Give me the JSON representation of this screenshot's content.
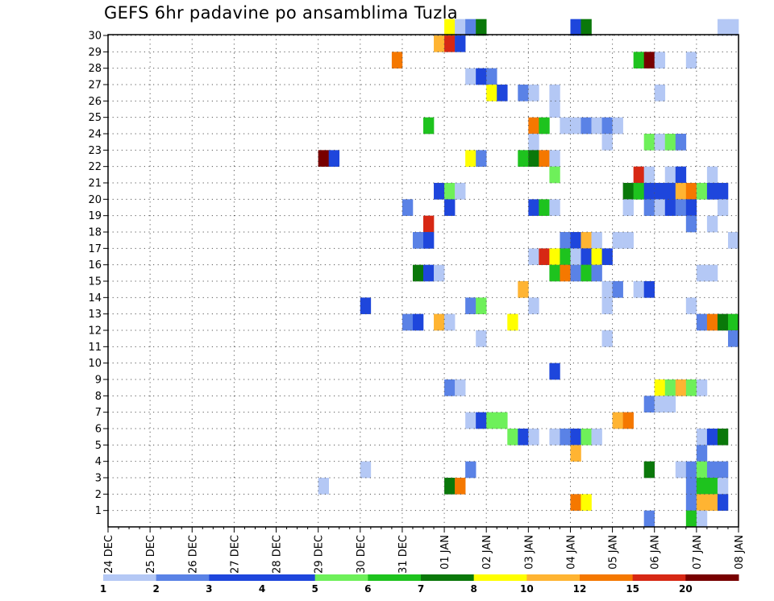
{
  "chart_data": {
    "type": "heatmap",
    "title": "GEFS 6hr padavine po ansamblima Tuzla",
    "xlabel": "",
    "ylabel": "",
    "x_tick_labels": [
      "24 DEC",
      "25 DEC",
      "26 DEC",
      "27 DEC",
      "28 DEC",
      "29 DEC",
      "30 DEC",
      "31 DEC",
      "01 JAN",
      "02 JAN",
      "03 JAN",
      "04 JAN",
      "05 JAN",
      "06 JAN",
      "07 JAN",
      "08 JAN"
    ],
    "x_steps_per_day": 4,
    "y_range": [
      0,
      30
    ],
    "y_ticks": [
      1,
      2,
      3,
      4,
      5,
      6,
      7,
      8,
      9,
      10,
      11,
      12,
      13,
      14,
      15,
      16,
      17,
      18,
      19,
      20,
      21,
      22,
      23,
      24,
      25,
      26,
      27,
      28,
      29,
      30
    ],
    "grid": true,
    "colorbar": {
      "labels": [
        "1",
        "2",
        "3",
        "4",
        "5",
        "6",
        "7",
        "8",
        "10",
        "12",
        "15",
        "20"
      ],
      "colors": [
        "#b4c8f5",
        "#5a82e6",
        "#1e46dc",
        "#1e46dc",
        "#6ef05a",
        "#1ec31e",
        "#0a780a",
        "#ffff00",
        "#ffb432",
        "#f57800",
        "#d72814",
        "#780000"
      ]
    },
    "legend_position": "bottom",
    "cells": [
      {
        "member": 30,
        "step": 32,
        "level": 8
      },
      {
        "member": 30,
        "step": 33,
        "level": 1
      },
      {
        "member": 30,
        "step": 34,
        "level": 2
      },
      {
        "member": 30,
        "step": 35,
        "level": 7
      },
      {
        "member": 30,
        "step": 44,
        "level": 3
      },
      {
        "member": 30,
        "step": 45,
        "level": 7
      },
      {
        "member": 30,
        "step": 58,
        "level": 1
      },
      {
        "member": 30,
        "step": 59,
        "level": 1
      },
      {
        "member": 29,
        "step": 31,
        "level": 10
      },
      {
        "member": 29,
        "step": 32,
        "level": 15
      },
      {
        "member": 29,
        "step": 33,
        "level": 3
      },
      {
        "member": 28,
        "step": 27,
        "level": 12
      },
      {
        "member": 28,
        "step": 50,
        "level": 6
      },
      {
        "member": 28,
        "step": 51,
        "level": 20
      },
      {
        "member": 28,
        "step": 52,
        "level": 1
      },
      {
        "member": 28,
        "step": 55,
        "level": 1
      },
      {
        "member": 27,
        "step": 34,
        "level": 1
      },
      {
        "member": 27,
        "step": 35,
        "level": 3
      },
      {
        "member": 27,
        "step": 36,
        "level": 2
      },
      {
        "member": 26,
        "step": 36,
        "level": 8
      },
      {
        "member": 26,
        "step": 37,
        "level": 3
      },
      {
        "member": 26,
        "step": 39,
        "level": 2
      },
      {
        "member": 26,
        "step": 40,
        "level": 1
      },
      {
        "member": 26,
        "step": 42,
        "level": 1
      },
      {
        "member": 26,
        "step": 52,
        "level": 1
      },
      {
        "member": 25,
        "step": 42,
        "level": 1
      },
      {
        "member": 24,
        "step": 30,
        "level": 6
      },
      {
        "member": 24,
        "step": 40,
        "level": 12
      },
      {
        "member": 24,
        "step": 41,
        "level": 6
      },
      {
        "member": 24,
        "step": 43,
        "level": 1
      },
      {
        "member": 24,
        "step": 44,
        "level": 1
      },
      {
        "member": 24,
        "step": 45,
        "level": 2
      },
      {
        "member": 24,
        "step": 46,
        "level": 1
      },
      {
        "member": 24,
        "step": 47,
        "level": 2
      },
      {
        "member": 24,
        "step": 48,
        "level": 1
      },
      {
        "member": 23,
        "step": 40,
        "level": 1
      },
      {
        "member": 23,
        "step": 47,
        "level": 1
      },
      {
        "member": 23,
        "step": 51,
        "level": 5
      },
      {
        "member": 23,
        "step": 52,
        "level": 1
      },
      {
        "member": 23,
        "step": 53,
        "level": 5
      },
      {
        "member": 23,
        "step": 54,
        "level": 2
      },
      {
        "member": 22,
        "step": 20,
        "level": 20
      },
      {
        "member": 22,
        "step": 21,
        "level": 3
      },
      {
        "member": 22,
        "step": 34,
        "level": 8
      },
      {
        "member": 22,
        "step": 35,
        "level": 2
      },
      {
        "member": 22,
        "step": 39,
        "level": 6
      },
      {
        "member": 22,
        "step": 40,
        "level": 7
      },
      {
        "member": 22,
        "step": 41,
        "level": 12
      },
      {
        "member": 22,
        "step": 42,
        "level": 1
      },
      {
        "member": 21,
        "step": 42,
        "level": 5
      },
      {
        "member": 21,
        "step": 50,
        "level": 15
      },
      {
        "member": 21,
        "step": 51,
        "level": 1
      },
      {
        "member": 21,
        "step": 53,
        "level": 1
      },
      {
        "member": 21,
        "step": 54,
        "level": 3
      },
      {
        "member": 21,
        "step": 57,
        "level": 1
      },
      {
        "member": 20,
        "step": 31,
        "level": 3
      },
      {
        "member": 20,
        "step": 32,
        "level": 5
      },
      {
        "member": 20,
        "step": 33,
        "level": 1
      },
      {
        "member": 20,
        "step": 49,
        "level": 7
      },
      {
        "member": 20,
        "step": 50,
        "level": 6
      },
      {
        "member": 20,
        "step": 51,
        "level": 3
      },
      {
        "member": 20,
        "step": 52,
        "level": 3
      },
      {
        "member": 20,
        "step": 53,
        "level": 3
      },
      {
        "member": 20,
        "step": 54,
        "level": 10
      },
      {
        "member": 20,
        "step": 55,
        "level": 12
      },
      {
        "member": 20,
        "step": 56,
        "level": 5
      },
      {
        "member": 20,
        "step": 57,
        "level": 3
      },
      {
        "member": 20,
        "step": 58,
        "level": 3
      },
      {
        "member": 19,
        "step": 28,
        "level": 2
      },
      {
        "member": 19,
        "step": 32,
        "level": 3
      },
      {
        "member": 19,
        "step": 40,
        "level": 3
      },
      {
        "member": 19,
        "step": 41,
        "level": 6
      },
      {
        "member": 19,
        "step": 42,
        "level": 1
      },
      {
        "member": 19,
        "step": 49,
        "level": 1
      },
      {
        "member": 19,
        "step": 51,
        "level": 2
      },
      {
        "member": 19,
        "step": 52,
        "level": 1
      },
      {
        "member": 19,
        "step": 53,
        "level": 3
      },
      {
        "member": 19,
        "step": 54,
        "level": 2
      },
      {
        "member": 19,
        "step": 55,
        "level": 3
      },
      {
        "member": 19,
        "step": 58,
        "level": 1
      },
      {
        "member": 18,
        "step": 30,
        "level": 15
      },
      {
        "member": 18,
        "step": 55,
        "level": 2
      },
      {
        "member": 18,
        "step": 57,
        "level": 1
      },
      {
        "member": 17,
        "step": 29,
        "level": 2
      },
      {
        "member": 17,
        "step": 30,
        "level": 3
      },
      {
        "member": 17,
        "step": 43,
        "level": 2
      },
      {
        "member": 17,
        "step": 44,
        "level": 3
      },
      {
        "member": 17,
        "step": 45,
        "level": 10
      },
      {
        "member": 17,
        "step": 46,
        "level": 1
      },
      {
        "member": 17,
        "step": 48,
        "level": 1
      },
      {
        "member": 17,
        "step": 49,
        "level": 1
      },
      {
        "member": 17,
        "step": 59,
        "level": 1
      },
      {
        "member": 16,
        "step": 40,
        "level": 1
      },
      {
        "member": 16,
        "step": 41,
        "level": 15
      },
      {
        "member": 16,
        "step": 42,
        "level": 8
      },
      {
        "member": 16,
        "step": 43,
        "level": 6
      },
      {
        "member": 16,
        "step": 44,
        "level": 1
      },
      {
        "member": 16,
        "step": 45,
        "level": 3
      },
      {
        "member": 16,
        "step": 46,
        "level": 8
      },
      {
        "member": 16,
        "step": 47,
        "level": 3
      },
      {
        "member": 15,
        "step": 29,
        "level": 7
      },
      {
        "member": 15,
        "step": 30,
        "level": 3
      },
      {
        "member": 15,
        "step": 31,
        "level": 1
      },
      {
        "member": 15,
        "step": 42,
        "level": 6
      },
      {
        "member": 15,
        "step": 43,
        "level": 12
      },
      {
        "member": 15,
        "step": 44,
        "level": 2
      },
      {
        "member": 15,
        "step": 45,
        "level": 6
      },
      {
        "member": 15,
        "step": 46,
        "level": 2
      },
      {
        "member": 15,
        "step": 56,
        "level": 1
      },
      {
        "member": 15,
        "step": 57,
        "level": 1
      },
      {
        "member": 14,
        "step": 39,
        "level": 10
      },
      {
        "member": 14,
        "step": 47,
        "level": 1
      },
      {
        "member": 14,
        "step": 48,
        "level": 2
      },
      {
        "member": 14,
        "step": 50,
        "level": 1
      },
      {
        "member": 14,
        "step": 51,
        "level": 3
      },
      {
        "member": 13,
        "step": 24,
        "level": 3
      },
      {
        "member": 13,
        "step": 34,
        "level": 2
      },
      {
        "member": 13,
        "step": 35,
        "level": 5
      },
      {
        "member": 13,
        "step": 40,
        "level": 1
      },
      {
        "member": 13,
        "step": 47,
        "level": 1
      },
      {
        "member": 13,
        "step": 55,
        "level": 1
      },
      {
        "member": 12,
        "step": 28,
        "level": 2
      },
      {
        "member": 12,
        "step": 29,
        "level": 3
      },
      {
        "member": 12,
        "step": 31,
        "level": 10
      },
      {
        "member": 12,
        "step": 32,
        "level": 1
      },
      {
        "member": 12,
        "step": 38,
        "level": 8
      },
      {
        "member": 12,
        "step": 56,
        "level": 2
      },
      {
        "member": 12,
        "step": 57,
        "level": 12
      },
      {
        "member": 12,
        "step": 58,
        "level": 7
      },
      {
        "member": 12,
        "step": 59,
        "level": 6
      },
      {
        "member": 11,
        "step": 35,
        "level": 1
      },
      {
        "member": 11,
        "step": 47,
        "level": 1
      },
      {
        "member": 11,
        "step": 59,
        "level": 2
      },
      {
        "member": 9,
        "step": 42,
        "level": 3
      },
      {
        "member": 8,
        "step": 32,
        "level": 2
      },
      {
        "member": 8,
        "step": 33,
        "level": 1
      },
      {
        "member": 8,
        "step": 52,
        "level": 8
      },
      {
        "member": 8,
        "step": 53,
        "level": 5
      },
      {
        "member": 8,
        "step": 54,
        "level": 10
      },
      {
        "member": 8,
        "step": 55,
        "level": 5
      },
      {
        "member": 8,
        "step": 56,
        "level": 1
      },
      {
        "member": 7,
        "step": 51,
        "level": 2
      },
      {
        "member": 7,
        "step": 52,
        "level": 1
      },
      {
        "member": 7,
        "step": 53,
        "level": 1
      },
      {
        "member": 6,
        "step": 34,
        "level": 1
      },
      {
        "member": 6,
        "step": 35,
        "level": 3
      },
      {
        "member": 6,
        "step": 36,
        "level": 5
      },
      {
        "member": 6,
        "step": 37,
        "level": 5
      },
      {
        "member": 6,
        "step": 48,
        "level": 10
      },
      {
        "member": 6,
        "step": 49,
        "level": 12
      },
      {
        "member": 5,
        "step": 38,
        "level": 5
      },
      {
        "member": 5,
        "step": 39,
        "level": 3
      },
      {
        "member": 5,
        "step": 40,
        "level": 1
      },
      {
        "member": 5,
        "step": 42,
        "level": 1
      },
      {
        "member": 5,
        "step": 43,
        "level": 2
      },
      {
        "member": 5,
        "step": 44,
        "level": 3
      },
      {
        "member": 5,
        "step": 45,
        "level": 5
      },
      {
        "member": 5,
        "step": 46,
        "level": 1
      },
      {
        "member": 5,
        "step": 56,
        "level": 1
      },
      {
        "member": 5,
        "step": 57,
        "level": 3
      },
      {
        "member": 5,
        "step": 58,
        "level": 7
      },
      {
        "member": 4,
        "step": 44,
        "level": 10
      },
      {
        "member": 4,
        "step": 56,
        "level": 2
      },
      {
        "member": 3,
        "step": 24,
        "level": 1
      },
      {
        "member": 3,
        "step": 34,
        "level": 2
      },
      {
        "member": 3,
        "step": 51,
        "level": 7
      },
      {
        "member": 3,
        "step": 54,
        "level": 1
      },
      {
        "member": 3,
        "step": 55,
        "level": 2
      },
      {
        "member": 3,
        "step": 56,
        "level": 5
      },
      {
        "member": 3,
        "step": 57,
        "level": 2
      },
      {
        "member": 3,
        "step": 58,
        "level": 2
      },
      {
        "member": 2,
        "step": 20,
        "level": 1
      },
      {
        "member": 2,
        "step": 32,
        "level": 7
      },
      {
        "member": 2,
        "step": 33,
        "level": 12
      },
      {
        "member": 2,
        "step": 55,
        "level": 2
      },
      {
        "member": 2,
        "step": 56,
        "level": 6
      },
      {
        "member": 2,
        "step": 57,
        "level": 6
      },
      {
        "member": 2,
        "step": 58,
        "level": 1
      },
      {
        "member": 1,
        "step": 44,
        "level": 12
      },
      {
        "member": 1,
        "step": 45,
        "level": 8
      },
      {
        "member": 1,
        "step": 55,
        "level": 2
      },
      {
        "member": 1,
        "step": 56,
        "level": 10
      },
      {
        "member": 1,
        "step": 57,
        "level": 10
      },
      {
        "member": 1,
        "step": 58,
        "level": 3
      },
      {
        "member": 0,
        "step": 51,
        "level": 2
      },
      {
        "member": 0,
        "step": 55,
        "level": 6
      },
      {
        "member": 0,
        "step": 56,
        "level": 1
      }
    ]
  }
}
